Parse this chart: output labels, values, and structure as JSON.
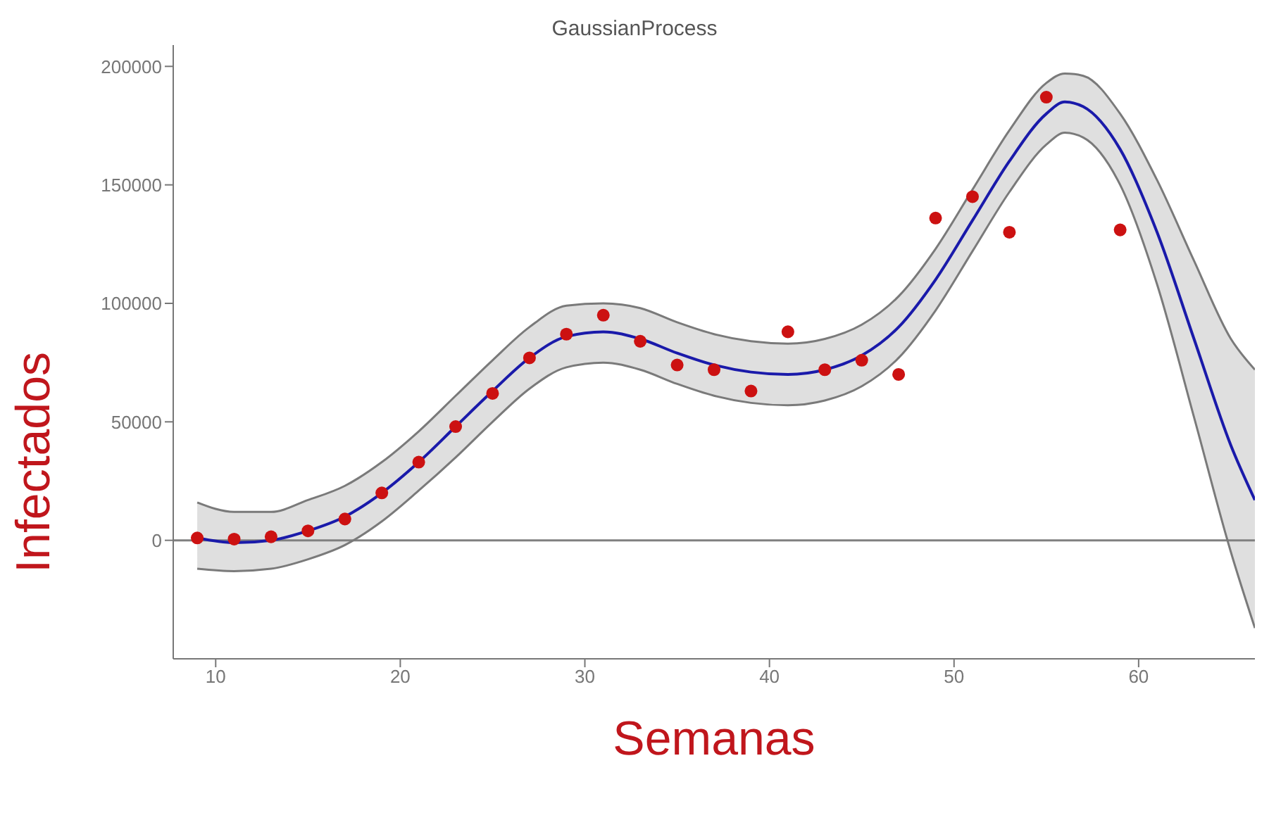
{
  "chart_data": {
    "type": "scatter",
    "title": "GaussianProcess",
    "xlabel": "Semanas",
    "ylabel": "Infectados",
    "xlim": [
      7.7,
      66.3
    ],
    "xticks": [
      10,
      20,
      30,
      40,
      50,
      60
    ],
    "ylim": [
      -50000,
      209000
    ],
    "yticks": [
      0,
      50000,
      100000,
      150000,
      200000
    ],
    "grid": false,
    "legend": false,
    "ref_lines": [
      {
        "axis": "y",
        "value": 0,
        "color": "#808080"
      }
    ],
    "series": [
      {
        "type": "line",
        "color": "#1a1aaa",
        "marker": "none",
        "line_style": "solid",
        "x": [
          9,
          11,
          13,
          15,
          17,
          19,
          21,
          23,
          25,
          27,
          29,
          31,
          33,
          35,
          37,
          39,
          41,
          43,
          45,
          47,
          49,
          51,
          53,
          55,
          56,
          57,
          59,
          61,
          63,
          65,
          66.3
        ],
        "values": [
          1000,
          -1000,
          0,
          4000,
          10000,
          20000,
          33000,
          48000,
          63000,
          77000,
          86000,
          88000,
          85000,
          79000,
          74000,
          71000,
          70000,
          72000,
          78000,
          90000,
          110000,
          135000,
          160000,
          180000,
          185000,
          183000,
          165000,
          130000,
          85000,
          40000,
          17000
        ],
        "lower": [
          -12000,
          -13000,
          -12000,
          -8000,
          -2000,
          8000,
          21000,
          35000,
          50000,
          64000,
          73000,
          75000,
          72000,
          66000,
          61000,
          58000,
          57000,
          59000,
          65000,
          77000,
          97000,
          122000,
          147000,
          167000,
          172000,
          170000,
          150000,
          108000,
          52000,
          -5000,
          -37000
        ],
        "upper": [
          16000,
          12000,
          12000,
          17000,
          23000,
          33000,
          46000,
          61000,
          76000,
          90000,
          99000,
          100000,
          98000,
          92000,
          87000,
          84000,
          83000,
          85000,
          91000,
          103000,
          123000,
          148000,
          173000,
          193000,
          197000,
          196000,
          180000,
          152000,
          118000,
          85000,
          72000
        ]
      },
      {
        "type": "line",
        "color": "#7a7a7a",
        "marker": "none",
        "line_style": "solid",
        "x": [
          9,
          11,
          13,
          15,
          17,
          19,
          21,
          23,
          25,
          27,
          29,
          31,
          33,
          35,
          37,
          39,
          41,
          43,
          45,
          47,
          49,
          51,
          53,
          55,
          56,
          57,
          59,
          61,
          63,
          65,
          66.3
        ],
        "values": [
          -12000,
          -13000,
          -12000,
          -8000,
          -2000,
          8000,
          21000,
          35000,
          50000,
          64000,
          73000,
          75000,
          72000,
          66000,
          61000,
          58000,
          57000,
          59000,
          65000,
          77000,
          97000,
          122000,
          147000,
          167000,
          172000,
          170000,
          150000,
          108000,
          52000,
          -5000,
          -37000
        ]
      },
      {
        "type": "line",
        "color": "#7a7a7a",
        "marker": "none",
        "line_style": "solid",
        "x": [
          9,
          11,
          13,
          15,
          17,
          19,
          21,
          23,
          25,
          27,
          29,
          31,
          33,
          35,
          37,
          39,
          41,
          43,
          45,
          47,
          49,
          51,
          53,
          55,
          56,
          57,
          59,
          61,
          63,
          65,
          66.3
        ],
        "values": [
          16000,
          12000,
          12000,
          17000,
          23000,
          33000,
          46000,
          61000,
          76000,
          90000,
          99000,
          100000,
          98000,
          92000,
          87000,
          84000,
          83000,
          85000,
          91000,
          103000,
          123000,
          148000,
          173000,
          193000,
          197000,
          196000,
          180000,
          152000,
          118000,
          85000,
          72000
        ]
      },
      {
        "color": "#cc1111",
        "marker": "circle",
        "x": [
          9,
          11,
          13,
          15,
          17,
          19,
          21,
          23,
          25,
          27,
          29,
          31,
          33,
          35,
          37,
          39,
          41,
          43,
          45,
          47,
          49,
          51,
          53,
          55,
          59
        ],
        "values": [
          1000,
          500,
          1500,
          4000,
          9000,
          20000,
          33000,
          48000,
          62000,
          77000,
          87000,
          95000,
          84000,
          74000,
          72000,
          63000,
          88000,
          72000,
          76000,
          70000,
          136000,
          145000,
          130000,
          187000,
          131000
        ]
      }
    ]
  }
}
